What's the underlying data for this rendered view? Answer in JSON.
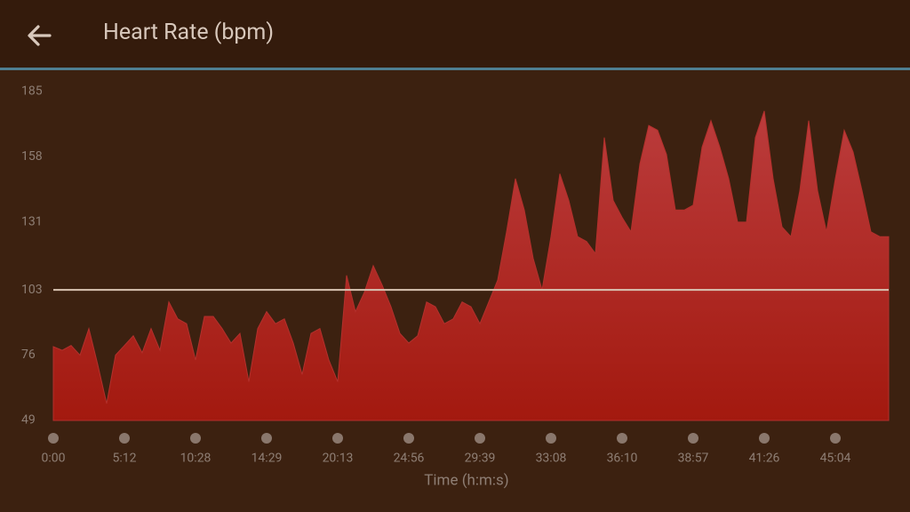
{
  "header": {
    "title": "Heart Rate (bpm)"
  },
  "chart_data": {
    "type": "area",
    "x_label": "Time (h:m:s)",
    "color": "#b3302c",
    "values": [
      79.5,
      78,
      80,
      76,
      87,
      72,
      56,
      76,
      80,
      84,
      77,
      87,
      78,
      98,
      91,
      89,
      74,
      92,
      92,
      87,
      81,
      85,
      65,
      87,
      94,
      89,
      91,
      81,
      68,
      85,
      87,
      74,
      65,
      109,
      94,
      102,
      113,
      105,
      96,
      85,
      81,
      84,
      98,
      96,
      89,
      91,
      98,
      96,
      89,
      98,
      107,
      127,
      149,
      136,
      116,
      103,
      125,
      151,
      140,
      125,
      123,
      118,
      166,
      140,
      133,
      127,
      155,
      171,
      169,
      159,
      136,
      136,
      138,
      162,
      173,
      162,
      149,
      131,
      131,
      166,
      177,
      149,
      129,
      125,
      144,
      173,
      144,
      127,
      149,
      169,
      160,
      144,
      127,
      125,
      125
    ],
    "xlim": [
      0,
      94
    ],
    "xticks": [
      {
        "value": 0,
        "label": "0:00"
      },
      {
        "value": 8,
        "label": "5:12"
      },
      {
        "value": 16,
        "label": "10:28"
      },
      {
        "value": 24,
        "label": "14:29"
      },
      {
        "value": 32,
        "label": "20:13"
      },
      {
        "value": 40,
        "label": "24:56"
      },
      {
        "value": 48,
        "label": "29:39"
      },
      {
        "value": 56,
        "label": "33:08"
      },
      {
        "value": 64,
        "label": "36:10"
      },
      {
        "value": 72,
        "label": "38:57"
      },
      {
        "value": 80,
        "label": "41:26"
      },
      {
        "value": 88,
        "label": "45:04"
      }
    ],
    "ylim": [
      49,
      185
    ],
    "yticks": [
      49,
      76,
      103,
      131,
      158,
      185
    ],
    "reference_line": 103,
    "reference_color": "#d9c4b2"
  }
}
